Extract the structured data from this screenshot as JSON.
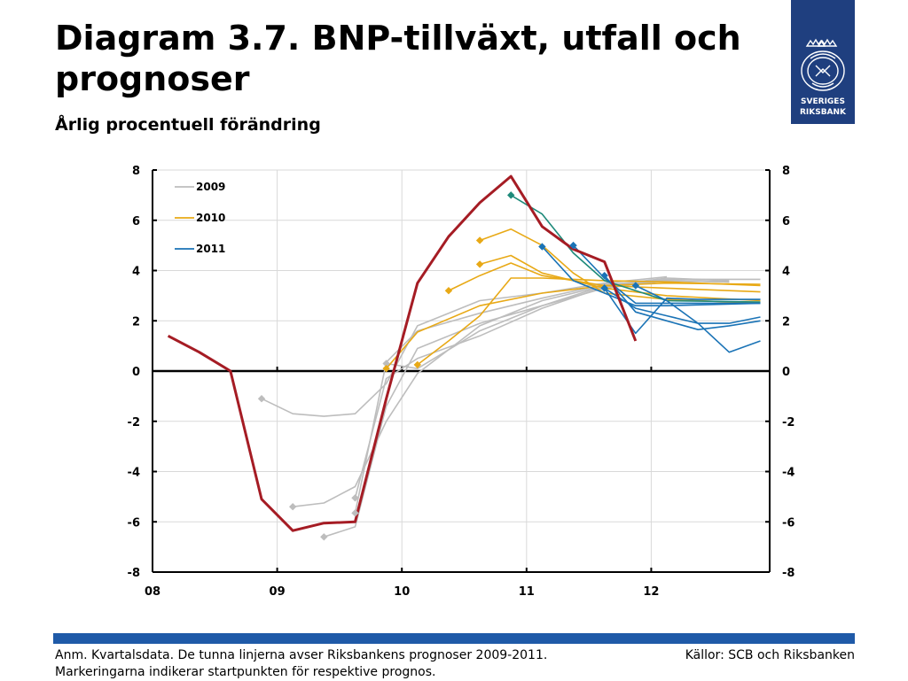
{
  "header": {
    "title": "Diagram 3.7. BNP-tillväxt, utfall och prognoser",
    "subtitle": "Årlig procentuell förändring"
  },
  "logo": {
    "line1": "SVERIGES",
    "line2": "RIKSBANK"
  },
  "footer": {
    "note": "Anm. Kvartalsdata. De tunna linjerna avser Riksbankens prognoser 2009-2011. Markeringarna indikerar startpunkten för respektive prognos.",
    "source": "Källor: SCB och Riksbanken"
  },
  "colors": {
    "outcome": "#a51c24",
    "f2009": "#bdbdbd",
    "f2010": "#e8a916",
    "f2011": "#1a73b6",
    "f2011b": "#1e8a7a",
    "brand": "#1f3f7f",
    "bar": "#1f5aa8"
  },
  "chart_data": {
    "type": "line",
    "x_unit": "year (quarters as fractions)",
    "xlim": [
      2008,
      2012.95
    ],
    "ylim": [
      -8,
      8
    ],
    "yticks_left": [
      "8",
      "6",
      "4",
      "2",
      "0",
      "-2",
      "-4",
      "-6",
      "-8"
    ],
    "yticks_right": [
      "8",
      "6",
      "4",
      "2",
      "0",
      "-2",
      "-4",
      "-6",
      "-8"
    ],
    "xticks": [
      {
        "label": "08",
        "x": 2008
      },
      {
        "label": "09",
        "x": 2009
      },
      {
        "label": "10",
        "x": 2010
      },
      {
        "label": "11",
        "x": 2011
      },
      {
        "label": "12",
        "x": 2012
      }
    ],
    "legend_position": "top-left",
    "legend": [
      {
        "label": "2009",
        "color_key": "f2009"
      },
      {
        "label": "2010",
        "color_key": "f2010"
      },
      {
        "label": "2011",
        "color_key": "f2011"
      }
    ],
    "outcome": {
      "color_key": "outcome",
      "points": [
        [
          2008.125,
          1.4
        ],
        [
          2008.375,
          0.75
        ],
        [
          2008.625,
          0.0
        ],
        [
          2008.875,
          -5.1
        ],
        [
          2009.125,
          -6.35
        ],
        [
          2009.375,
          -6.05
        ],
        [
          2009.625,
          -6.0
        ],
        [
          2009.875,
          -1.1
        ],
        [
          2010.125,
          3.5
        ],
        [
          2010.375,
          5.35
        ],
        [
          2010.625,
          6.7
        ],
        [
          2010.875,
          7.75
        ],
        [
          2011.125,
          5.75
        ],
        [
          2011.375,
          4.85
        ],
        [
          2011.625,
          4.35
        ],
        [
          2011.875,
          1.2
        ]
      ]
    },
    "forecasts": [
      {
        "group": "2009",
        "color_key": "f2009",
        "points": [
          [
            2008.875,
            -1.1
          ],
          [
            2009.125,
            -1.7
          ],
          [
            2009.375,
            -1.8
          ],
          [
            2009.625,
            -1.7
          ],
          [
            2009.875,
            -0.5
          ],
          [
            2010.125,
            1.8
          ],
          [
            2010.625,
            2.8
          ],
          [
            2011.125,
            3.1
          ],
          [
            2011.625,
            3.5
          ],
          [
            2012.125,
            3.75
          ]
        ]
      },
      {
        "group": "2009",
        "color_key": "f2009",
        "points": [
          [
            2009.125,
            -5.4
          ],
          [
            2009.375,
            -5.25
          ],
          [
            2009.625,
            -4.6
          ],
          [
            2009.875,
            -2.0
          ],
          [
            2010.125,
            -0.1
          ],
          [
            2010.625,
            1.8
          ],
          [
            2011.125,
            2.8
          ],
          [
            2011.625,
            3.4
          ],
          [
            2012.125,
            3.65
          ],
          [
            2012.875,
            3.65
          ]
        ]
      },
      {
        "group": "2009",
        "color_key": "f2009",
        "points": [
          [
            2009.375,
            -6.6
          ],
          [
            2009.625,
            -6.2
          ],
          [
            2009.875,
            -1.4
          ],
          [
            2010.125,
            0.9
          ],
          [
            2010.625,
            1.9
          ],
          [
            2011.125,
            2.6
          ],
          [
            2011.625,
            3.3
          ],
          [
            2012.125,
            3.6
          ],
          [
            2012.625,
            3.55
          ]
        ]
      },
      {
        "group": "2009",
        "color_key": "f2009",
        "points": [
          [
            2009.625,
            -5.65
          ],
          [
            2009.875,
            0.35
          ],
          [
            2010.125,
            1.6
          ],
          [
            2010.625,
            2.3
          ],
          [
            2011.125,
            2.9
          ],
          [
            2011.625,
            3.45
          ],
          [
            2012.125,
            3.6
          ],
          [
            2012.625,
            3.55
          ]
        ]
      },
      {
        "group": "2009",
        "color_key": "f2009",
        "points": [
          [
            2009.625,
            -5.05
          ],
          [
            2009.875,
            -0.3
          ],
          [
            2010.125,
            0.5
          ],
          [
            2010.625,
            1.4
          ],
          [
            2011.125,
            2.5
          ],
          [
            2011.625,
            3.35
          ],
          [
            2012.125,
            3.6
          ],
          [
            2012.625,
            3.55
          ]
        ]
      },
      {
        "group": "2009",
        "color_key": "f2009",
        "points": [
          [
            2009.875,
            0.3
          ],
          [
            2010.125,
            0.1
          ],
          [
            2010.625,
            1.6
          ],
          [
            2011.125,
            2.6
          ],
          [
            2011.625,
            3.4
          ],
          [
            2012.125,
            3.7
          ],
          [
            2012.625,
            3.6
          ]
        ]
      },
      {
        "group": "2010",
        "color_key": "f2010",
        "points": [
          [
            2009.875,
            0.1
          ],
          [
            2010.125,
            1.55
          ],
          [
            2010.625,
            2.6
          ],
          [
            2011.125,
            3.1
          ],
          [
            2011.625,
            3.4
          ],
          [
            2012.125,
            3.5
          ],
          [
            2012.875,
            3.45
          ]
        ]
      },
      {
        "group": "2010",
        "color_key": "f2010",
        "points": [
          [
            2010.125,
            0.25
          ],
          [
            2010.375,
            1.2
          ],
          [
            2010.625,
            2.2
          ],
          [
            2010.875,
            3.7
          ],
          [
            2011.125,
            3.7
          ],
          [
            2011.625,
            3.6
          ],
          [
            2012.125,
            3.55
          ],
          [
            2012.875,
            3.4
          ]
        ]
      },
      {
        "group": "2010",
        "color_key": "f2010",
        "points": [
          [
            2010.375,
            3.2
          ],
          [
            2010.625,
            3.8
          ],
          [
            2010.875,
            4.3
          ],
          [
            2011.125,
            3.8
          ],
          [
            2011.625,
            3.4
          ],
          [
            2012.125,
            3.3
          ],
          [
            2012.875,
            3.15
          ]
        ]
      },
      {
        "group": "2010",
        "color_key": "f2010",
        "points": [
          [
            2010.625,
            4.25
          ],
          [
            2010.875,
            4.6
          ],
          [
            2011.125,
            3.9
          ],
          [
            2011.625,
            3.3
          ],
          [
            2012.125,
            3.0
          ],
          [
            2012.875,
            2.8
          ]
        ]
      },
      {
        "group": "2010",
        "color_key": "f2010",
        "points": [
          [
            2010.625,
            5.2
          ],
          [
            2010.875,
            5.65
          ],
          [
            2011.125,
            5.0
          ],
          [
            2011.375,
            3.9
          ],
          [
            2011.625,
            3.1
          ],
          [
            2012.125,
            2.85
          ],
          [
            2012.875,
            2.7
          ]
        ]
      },
      {
        "group": "2011",
        "color_key": "f2011b",
        "points": [
          [
            2010.875,
            7.0
          ],
          [
            2011.125,
            6.25
          ],
          [
            2011.375,
            4.7
          ],
          [
            2011.625,
            3.6
          ],
          [
            2012.125,
            2.8
          ],
          [
            2012.875,
            2.75
          ]
        ]
      },
      {
        "group": "2011",
        "color_key": "f2011",
        "points": [
          [
            2011.125,
            4.95
          ],
          [
            2011.375,
            3.6
          ],
          [
            2011.625,
            3.1
          ],
          [
            2011.875,
            2.6
          ],
          [
            2012.125,
            2.6
          ],
          [
            2012.875,
            2.7
          ]
        ]
      },
      {
        "group": "2011",
        "color_key": "f2011",
        "points": [
          [
            2011.375,
            5.0
          ],
          [
            2011.625,
            3.7
          ],
          [
            2011.875,
            2.7
          ],
          [
            2012.125,
            2.7
          ],
          [
            2012.875,
            2.7
          ]
        ]
      },
      {
        "group": "2011",
        "color_key": "f2011",
        "points": [
          [
            2011.625,
            3.3
          ],
          [
            2011.875,
            2.5
          ],
          [
            2012.125,
            2.2
          ],
          [
            2012.375,
            1.9
          ],
          [
            2012.625,
            1.9
          ],
          [
            2012.875,
            2.15
          ]
        ]
      },
      {
        "group": "2011",
        "color_key": "f2011",
        "points": [
          [
            2011.625,
            3.8
          ],
          [
            2011.875,
            2.35
          ],
          [
            2012.125,
            2.0
          ],
          [
            2012.375,
            1.65
          ],
          [
            2012.625,
            1.8
          ],
          [
            2012.875,
            2.0
          ]
        ]
      },
      {
        "group": "2011",
        "color_key": "f2011",
        "points": [
          [
            2011.875,
            3.4
          ],
          [
            2012.125,
            2.8
          ],
          [
            2012.375,
            1.9
          ],
          [
            2012.625,
            0.75
          ],
          [
            2012.875,
            1.2
          ]
        ]
      },
      {
        "group": "2011",
        "color_key": "f2011",
        "points": [
          [
            2011.625,
            3.3
          ],
          [
            2011.875,
            1.5
          ],
          [
            2012.125,
            2.9
          ],
          [
            2012.375,
            2.85
          ],
          [
            2012.875,
            2.85
          ]
        ]
      }
    ]
  }
}
